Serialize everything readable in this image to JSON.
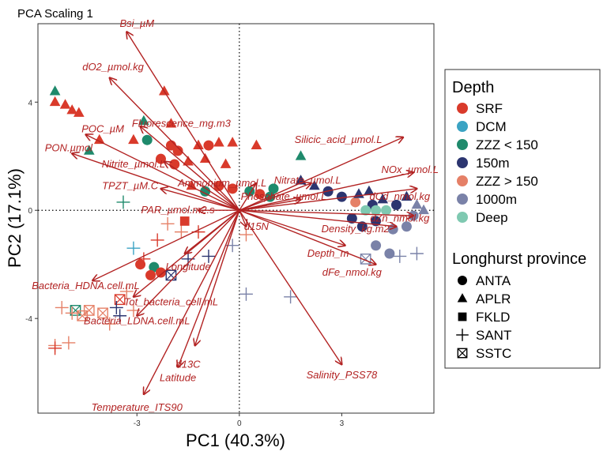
{
  "chart_data": {
    "type": "scatter",
    "title": "PCA Scaling 1",
    "xlabel": "PC1 (40.3%)",
    "ylabel": "PC2 (17.1%)",
    "xlim": [
      -5.9,
      5.7
    ],
    "ylim": [
      -7.5,
      6.9
    ],
    "x_ticks": [
      -3,
      0,
      3
    ],
    "y_ticks": [
      -4,
      0,
      4
    ],
    "x_tick_labels": [
      "-3",
      "0",
      "3"
    ],
    "y_tick_labels": [
      "-4",
      "0",
      "4"
    ],
    "grid": false,
    "reference_lines": {
      "x": 0,
      "y": 0,
      "style": "dotted"
    },
    "vector_color": "#b22222",
    "vectors": [
      {
        "label": "Bsi_µM",
        "x": -3.3,
        "y": 6.6,
        "lx": -3.0,
        "ly": 6.9
      },
      {
        "label": "dO2_µmol.kg",
        "x": -3.8,
        "y": 4.9,
        "lx": -3.7,
        "ly": 5.3
      },
      {
        "label": "Fluorescence_mg.m3",
        "x": -2.9,
        "y": 3.1,
        "lx": -1.7,
        "ly": 3.2
      },
      {
        "label": "POC_µM",
        "x": -4.5,
        "y": 2.8,
        "lx": -4.0,
        "ly": 3.0
      },
      {
        "label": "PON.µmol",
        "x": -4.9,
        "y": 2.1,
        "lx": -5.0,
        "ly": 2.3
      },
      {
        "label": "Nitrite_µmol.L",
        "x": -2.2,
        "y": 1.8,
        "lx": -3.1,
        "ly": 1.7
      },
      {
        "label": "Silicic_acid_µmol.L",
        "x": 4.8,
        "y": 2.7,
        "lx": 2.9,
        "ly": 2.6
      },
      {
        "label": "NOx_µmol.L",
        "x": 5.1,
        "y": 1.4,
        "lx": 5.0,
        "ly": 1.5
      },
      {
        "label": "TPZT_µM.C",
        "x": -2.3,
        "y": 0.8,
        "lx": -3.2,
        "ly": 0.9
      },
      {
        "label": "Ammonium_µmol.L",
        "x": 0.5,
        "y": 1.0,
        "lx": -0.5,
        "ly": 1.0
      },
      {
        "label": "Nitrate_µmol.L",
        "x": 2.1,
        "y": 1.0,
        "lx": 2.0,
        "ly": 1.1
      },
      {
        "label": "dCd_nmol.kg",
        "x": 5.2,
        "y": 0.8,
        "lx": 4.7,
        "ly": 0.5
      },
      {
        "label": "Phosphate_µmol.L",
        "x": 1.8,
        "y": 0.4,
        "lx": 1.3,
        "ly": 0.5
      },
      {
        "label": "PAR_µmol.m2.s",
        "x": -1.2,
        "y": 0.0,
        "lx": -1.8,
        "ly": 0.0
      },
      {
        "label": "dZn_nmol.kg",
        "x": 5.1,
        "y": -0.2,
        "lx": 4.7,
        "ly": -0.3
      },
      {
        "label": "Density_kg.m2",
        "x": 4.6,
        "y": -0.6,
        "lx": 3.4,
        "ly": -0.7
      },
      {
        "label": "d15N",
        "x": 0.2,
        "y": -0.6,
        "lx": 0.5,
        "ly": -0.6
      },
      {
        "label": "Depth_m",
        "x": 3.1,
        "y": -1.3,
        "lx": 2.6,
        "ly": -1.6
      },
      {
        "label": "Longitude",
        "x": -1.6,
        "y": -1.6,
        "lx": -1.5,
        "ly": -2.1
      },
      {
        "label": "dFe_nmol.kg",
        "x": 4.0,
        "y": -2.0,
        "lx": 3.3,
        "ly": -2.3
      },
      {
        "label": "Bacteria_HDNA.cell.mL",
        "x": -4.3,
        "y": -2.6,
        "lx": -4.5,
        "ly": -2.8
      },
      {
        "label": "Tot_bacteria_cell.mL",
        "x": -3.1,
        "y": -3.2,
        "lx": -2.0,
        "ly": -3.4
      },
      {
        "label": "Bacteria_LDNA.cell.mL",
        "x": -3.0,
        "y": -3.9,
        "lx": -3.0,
        "ly": -4.1
      },
      {
        "label": "d13C",
        "x": -1.3,
        "y": -5.0,
        "lx": -1.5,
        "ly": -5.7
      },
      {
        "label": "Latitude",
        "x": -1.8,
        "y": -5.8,
        "lx": -1.8,
        "ly": -6.2
      },
      {
        "label": "Salinity_PSS78",
        "x": 3.0,
        "y": -5.7,
        "lx": 3.0,
        "ly": -6.1
      },
      {
        "label": "Temperature_ITS90",
        "x": -2.8,
        "y": -6.8,
        "lx": -3.0,
        "ly": -7.3
      }
    ],
    "legend": {
      "position": "right",
      "depth_title": "Depth",
      "depth": [
        {
          "label": "SRF",
          "color": "#d93a2b"
        },
        {
          "label": "DCM",
          "color": "#3ba3c3"
        },
        {
          "label": "ZZZ < 150",
          "color": "#1f8a6c"
        },
        {
          "label": "150m",
          "color": "#2c3570"
        },
        {
          "label": "ZZZ > 150",
          "color": "#e58067"
        },
        {
          "label": "1000m",
          "color": "#7a82a8"
        },
        {
          "label": "Deep",
          "color": "#7fc9b1"
        }
      ],
      "province_title": "Longhurst province",
      "province": [
        {
          "label": "ANTA",
          "shape": "circle"
        },
        {
          "label": "APLR",
          "shape": "triangle"
        },
        {
          "label": "FKLD",
          "shape": "square"
        },
        {
          "label": "SANT",
          "shape": "plus"
        },
        {
          "label": "SSTC",
          "shape": "boxx"
        }
      ]
    },
    "points": [
      {
        "x": -5.4,
        "y": 4.4,
        "depth": "ZZZ < 150",
        "province": "APLR"
      },
      {
        "x": -5.4,
        "y": 4.0,
        "depth": "SRF",
        "province": "APLR"
      },
      {
        "x": -5.1,
        "y": 3.9,
        "depth": "SRF",
        "province": "APLR"
      },
      {
        "x": -4.9,
        "y": 3.7,
        "depth": "SRF",
        "province": "APLR"
      },
      {
        "x": -4.7,
        "y": 3.6,
        "depth": "SRF",
        "province": "APLR"
      },
      {
        "x": -4.1,
        "y": 2.6,
        "depth": "SRF",
        "province": "APLR"
      },
      {
        "x": -4.4,
        "y": 2.2,
        "depth": "ZZZ < 150",
        "province": "APLR"
      },
      {
        "x": -3.1,
        "y": 2.6,
        "depth": "SRF",
        "province": "APLR"
      },
      {
        "x": -2.8,
        "y": 3.3,
        "depth": "ZZZ < 150",
        "province": "APLR"
      },
      {
        "x": -2.7,
        "y": 2.6,
        "depth": "ZZZ < 150",
        "province": "ANTA"
      },
      {
        "x": -2.2,
        "y": 4.4,
        "depth": "SRF",
        "province": "APLR"
      },
      {
        "x": -2.0,
        "y": 3.2,
        "depth": "SRF",
        "province": "APLR"
      },
      {
        "x": -2.0,
        "y": 2.4,
        "depth": "SRF",
        "province": "ANTA"
      },
      {
        "x": -1.8,
        "y": 2.2,
        "depth": "SRF",
        "province": "ANTA"
      },
      {
        "x": -2.3,
        "y": 1.9,
        "depth": "SRF",
        "province": "ANTA"
      },
      {
        "x": -1.9,
        "y": 1.7,
        "depth": "SRF",
        "province": "ANTA"
      },
      {
        "x": -1.5,
        "y": 1.8,
        "depth": "SRF",
        "province": "APLR"
      },
      {
        "x": -1.2,
        "y": 2.4,
        "depth": "SRF",
        "province": "APLR"
      },
      {
        "x": -0.9,
        "y": 2.4,
        "depth": "SRF",
        "province": "ANTA"
      },
      {
        "x": -0.6,
        "y": 2.5,
        "depth": "SRF",
        "province": "APLR"
      },
      {
        "x": -0.2,
        "y": 2.5,
        "depth": "SRF",
        "province": "APLR"
      },
      {
        "x": -1.0,
        "y": 1.9,
        "depth": "SRF",
        "province": "APLR"
      },
      {
        "x": -0.4,
        "y": 1.7,
        "depth": "SRF",
        "province": "APLR"
      },
      {
        "x": 0.5,
        "y": 2.4,
        "depth": "SRF",
        "province": "APLR"
      },
      {
        "x": -1.4,
        "y": 0.9,
        "depth": "SRF",
        "province": "APLR"
      },
      {
        "x": -1.0,
        "y": 0.7,
        "depth": "ZZZ < 150",
        "province": "ANTA"
      },
      {
        "x": -0.6,
        "y": 0.9,
        "depth": "SRF",
        "province": "ANTA"
      },
      {
        "x": -0.2,
        "y": 0.8,
        "depth": "SRF",
        "province": "ANTA"
      },
      {
        "x": 0.3,
        "y": 0.7,
        "depth": "ZZZ < 150",
        "province": "ANTA"
      },
      {
        "x": 0.6,
        "y": 0.6,
        "depth": "SRF",
        "province": "ANTA"
      },
      {
        "x": 0.9,
        "y": 0.5,
        "depth": "ZZZ < 150",
        "province": "ANTA"
      },
      {
        "x": 1.0,
        "y": 0.8,
        "depth": "ZZZ < 150",
        "province": "ANTA"
      },
      {
        "x": 1.8,
        "y": 2.0,
        "depth": "ZZZ < 150",
        "province": "APLR"
      },
      {
        "x": 1.8,
        "y": 1.1,
        "depth": "150m",
        "province": "APLR"
      },
      {
        "x": 2.2,
        "y": 0.9,
        "depth": "150m",
        "province": "APLR"
      },
      {
        "x": 2.6,
        "y": 0.7,
        "depth": "150m",
        "province": "ANTA"
      },
      {
        "x": 3.0,
        "y": 0.5,
        "depth": "150m",
        "province": "ANTA"
      },
      {
        "x": 3.4,
        "y": 0.3,
        "depth": "ZZZ > 150",
        "province": "ANTA"
      },
      {
        "x": 3.5,
        "y": 0.6,
        "depth": "150m",
        "province": "APLR"
      },
      {
        "x": 3.8,
        "y": 0.7,
        "depth": "150m",
        "province": "APLR"
      },
      {
        "x": 3.9,
        "y": 0.2,
        "depth": "150m",
        "province": "ANTA"
      },
      {
        "x": 4.2,
        "y": 0.4,
        "depth": "150m",
        "province": "APLR"
      },
      {
        "x": 4.3,
        "y": 0.0,
        "depth": "Deep",
        "province": "ANTA"
      },
      {
        "x": 4.6,
        "y": 0.2,
        "depth": "150m",
        "province": "ANTA"
      },
      {
        "x": 4.9,
        "y": 0.5,
        "depth": "150m",
        "province": "APLR"
      },
      {
        "x": 5.2,
        "y": 0.2,
        "depth": "1000m",
        "province": "APLR"
      },
      {
        "x": 5.4,
        "y": 0.0,
        "depth": "1000m",
        "province": "APLR"
      },
      {
        "x": 5.1,
        "y": -0.2,
        "depth": "1000m",
        "province": "ANTA"
      },
      {
        "x": 4.9,
        "y": -0.6,
        "depth": "1000m",
        "province": "ANTA"
      },
      {
        "x": 4.5,
        "y": -0.7,
        "depth": "1000m",
        "province": "ANTA"
      },
      {
        "x": 4.0,
        "y": -0.4,
        "depth": "150m",
        "province": "ANTA"
      },
      {
        "x": 3.6,
        "y": -0.6,
        "depth": "150m",
        "province": "ANTA"
      },
      {
        "x": 3.3,
        "y": -0.3,
        "depth": "150m",
        "province": "ANTA"
      },
      {
        "x": 4.0,
        "y": -1.3,
        "depth": "1000m",
        "province": "ANTA"
      },
      {
        "x": 4.4,
        "y": -1.6,
        "depth": "1000m",
        "province": "ANTA"
      },
      {
        "x": 4.7,
        "y": -1.7,
        "depth": "1000m",
        "province": "SANT"
      },
      {
        "x": 5.2,
        "y": -1.6,
        "depth": "1000m",
        "province": "SANT"
      },
      {
        "x": 3.7,
        "y": -1.8,
        "depth": "1000m",
        "province": "SSTC"
      },
      {
        "x": 3.7,
        "y": 0.0,
        "depth": "Deep",
        "province": "ANTA"
      },
      {
        "x": 4.0,
        "y": 0.0,
        "depth": "Deep",
        "province": "ANTA"
      },
      {
        "x": -3.4,
        "y": 0.3,
        "depth": "ZZZ < 150",
        "province": "SANT"
      },
      {
        "x": -2.1,
        "y": -0.5,
        "depth": "ZZZ > 150",
        "province": "SANT"
      },
      {
        "x": -1.7,
        "y": -0.8,
        "depth": "ZZZ > 150",
        "province": "SANT"
      },
      {
        "x": -2.4,
        "y": -1.1,
        "depth": "SRF",
        "province": "SANT"
      },
      {
        "x": -1.2,
        "y": -0.8,
        "depth": "SRF",
        "province": "SANT"
      },
      {
        "x": -1.6,
        "y": -0.4,
        "depth": "SRF",
        "province": "FKLD"
      },
      {
        "x": -3.1,
        "y": -1.4,
        "depth": "DCM",
        "province": "SANT"
      },
      {
        "x": -2.8,
        "y": -1.8,
        "depth": "SRF",
        "province": "SANT"
      },
      {
        "x": -2.5,
        "y": -2.1,
        "depth": "ZZZ < 150",
        "province": "ANTA"
      },
      {
        "x": -2.9,
        "y": -2.0,
        "depth": "SRF",
        "province": "ANTA"
      },
      {
        "x": -2.6,
        "y": -2.4,
        "depth": "SRF",
        "province": "ANTA"
      },
      {
        "x": -2.3,
        "y": -2.3,
        "depth": "SRF",
        "province": "ANTA"
      },
      {
        "x": -2.0,
        "y": -2.4,
        "depth": "150m",
        "province": "SSTC"
      },
      {
        "x": -1.5,
        "y": -1.8,
        "depth": "150m",
        "province": "SANT"
      },
      {
        "x": -0.9,
        "y": -1.7,
        "depth": "150m",
        "province": "SANT"
      },
      {
        "x": -0.2,
        "y": -1.3,
        "depth": "1000m",
        "province": "SANT"
      },
      {
        "x": 0.2,
        "y": -0.9,
        "depth": "ZZZ > 150",
        "province": "SANT"
      },
      {
        "x": 0.2,
        "y": -3.1,
        "depth": "1000m",
        "province": "SANT"
      },
      {
        "x": 1.5,
        "y": -3.2,
        "depth": "1000m",
        "province": "SANT"
      },
      {
        "x": -3.5,
        "y": -3.3,
        "depth": "SRF",
        "province": "SSTC"
      },
      {
        "x": -3.3,
        "y": -3.0,
        "depth": "ZZZ > 150",
        "province": "SANT"
      },
      {
        "x": -3.6,
        "y": -3.6,
        "depth": "150m",
        "province": "SANT"
      },
      {
        "x": -3.5,
        "y": -3.9,
        "depth": "150m",
        "province": "SANT"
      },
      {
        "x": -4.0,
        "y": -3.8,
        "depth": "ZZZ > 150",
        "province": "SSTC"
      },
      {
        "x": -4.4,
        "y": -3.7,
        "depth": "ZZZ > 150",
        "province": "SSTC"
      },
      {
        "x": -4.8,
        "y": -3.7,
        "depth": "ZZZ < 150",
        "province": "SSTC"
      },
      {
        "x": -4.6,
        "y": -3.9,
        "depth": "ZZZ > 150",
        "province": "SSTC"
      },
      {
        "x": -5.2,
        "y": -3.6,
        "depth": "ZZZ > 150",
        "province": "SANT"
      },
      {
        "x": -4.9,
        "y": -3.8,
        "depth": "ZZZ > 150",
        "province": "SANT"
      },
      {
        "x": -5.4,
        "y": -5.0,
        "depth": "ZZZ > 150",
        "province": "SANT"
      },
      {
        "x": -5.4,
        "y": -5.1,
        "depth": "SRF",
        "province": "SANT"
      },
      {
        "x": -5.0,
        "y": -4.9,
        "depth": "ZZZ > 150",
        "province": "SANT"
      },
      {
        "x": -3.8,
        "y": -4.2,
        "depth": "ZZZ > 150",
        "province": "SANT"
      },
      {
        "x": -3.1,
        "y": -3.7,
        "depth": "ZZZ > 150",
        "province": "SANT"
      }
    ]
  }
}
